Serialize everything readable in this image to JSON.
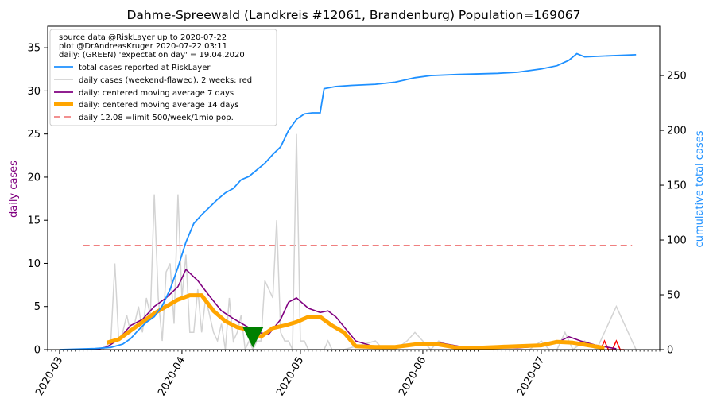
{
  "chart_data": {
    "type": "line",
    "title": "Dahme-Spreewald (Landkreis #12061, Brandenburg) Population=169067",
    "ylabel_left": "daily cases",
    "ylabel_right": "cumulative total cases",
    "ylim_left": [
      0,
      37.5
    ],
    "ylim_right": [
      0,
      295
    ],
    "xlim": [
      "2020-02-27",
      "2020-07-31"
    ],
    "left_ticks": [
      "0",
      "5",
      "10",
      "15",
      "20",
      "25",
      "30",
      "35"
    ],
    "right_ticks": [
      "0",
      "50",
      "100",
      "150",
      "200",
      "250"
    ],
    "date_ticks": [
      {
        "date": "2020-03-01",
        "label": "2020-03"
      },
      {
        "date": "2020-04-01",
        "label": "2020-04"
      },
      {
        "date": "2020-05-01",
        "label": "2020-05"
      },
      {
        "date": "2020-06-01",
        "label": "2020-06"
      },
      {
        "date": "2020-07-01",
        "label": "2020-07"
      }
    ],
    "legend": {
      "placement": "upper-left",
      "notes": [
        "source data @RiskLayer up to 2020-07-22",
        "plot @DrAndreasKruger 2020-07-22 03:11",
        "daily: (GREEN) 'expectation day' = 19.04.2020"
      ],
      "entries": [
        {
          "label": "total cases reported at RiskLayer",
          "color": "#1e90ff",
          "style": "line"
        },
        {
          "label": "daily cases (weekend-flawed), 2 weeks: red",
          "color": "#d3d3d3",
          "style": "line"
        },
        {
          "label": "daily: centered moving average 7 days",
          "color": "#800080",
          "style": "line"
        },
        {
          "label": "daily: centered moving average 14 days",
          "color": "#ffa500",
          "style": "thick"
        },
        {
          "label": "daily 12.08 =limit 500/week/1mio pop.",
          "color": "#f08080",
          "style": "dashed"
        }
      ]
    },
    "limit_line": {
      "value": 12.08,
      "from": "2020-03-07",
      "to": "2020-07-24"
    },
    "expectation_day": {
      "date": "2020-04-19",
      "value": 1.4,
      "color": "#008000"
    },
    "series_total": {
      "dates": [
        "2020-03-01",
        "2020-03-10",
        "2020-03-14",
        "2020-03-17",
        "2020-03-19",
        "2020-03-21",
        "2020-03-23",
        "2020-03-25",
        "2020-03-27",
        "2020-03-29",
        "2020-03-31",
        "2020-04-02",
        "2020-04-04",
        "2020-04-06",
        "2020-04-08",
        "2020-04-10",
        "2020-04-12",
        "2020-04-14",
        "2020-04-16",
        "2020-04-18",
        "2020-04-20",
        "2020-04-22",
        "2020-04-24",
        "2020-04-26",
        "2020-04-28",
        "2020-04-30",
        "2020-05-02",
        "2020-05-04",
        "2020-05-06",
        "2020-05-07",
        "2020-05-10",
        "2020-05-14",
        "2020-05-20",
        "2020-05-25",
        "2020-05-30",
        "2020-06-03",
        "2020-06-10",
        "2020-06-20",
        "2020-06-25",
        "2020-07-01",
        "2020-07-05",
        "2020-07-08",
        "2020-07-10",
        "2020-07-12",
        "2020-07-18",
        "2020-07-25"
      ],
      "values": [
        0,
        1,
        2,
        5,
        10,
        18,
        25,
        30,
        40,
        55,
        75,
        98,
        115,
        123,
        130,
        137,
        143,
        147,
        155,
        158,
        164,
        170,
        178,
        185,
        200,
        210,
        215,
        216,
        216,
        238,
        240,
        241,
        242,
        244,
        248,
        250,
        251,
        252,
        253,
        256,
        259,
        264,
        270,
        267,
        268,
        269
      ]
    },
    "series_daily": {
      "dates": [
        "2020-03-01",
        "2020-03-10",
        "2020-03-12",
        "2020-03-14",
        "2020-03-15",
        "2020-03-16",
        "2020-03-17",
        "2020-03-18",
        "2020-03-19",
        "2020-03-20",
        "2020-03-21",
        "2020-03-22",
        "2020-03-23",
        "2020-03-24",
        "2020-03-25",
        "2020-03-26",
        "2020-03-27",
        "2020-03-28",
        "2020-03-29",
        "2020-03-30",
        "2020-03-31",
        "2020-04-01",
        "2020-04-02",
        "2020-04-03",
        "2020-04-04",
        "2020-04-05",
        "2020-04-06",
        "2020-04-07",
        "2020-04-08",
        "2020-04-09",
        "2020-04-10",
        "2020-04-11",
        "2020-04-12",
        "2020-04-13",
        "2020-04-14",
        "2020-04-15",
        "2020-04-16",
        "2020-04-17",
        "2020-04-18",
        "2020-04-19",
        "2020-04-20",
        "2020-04-21",
        "2020-04-22",
        "2020-04-23",
        "2020-04-24",
        "2020-04-25",
        "2020-04-26",
        "2020-04-27",
        "2020-04-28",
        "2020-04-29",
        "2020-04-30",
        "2020-05-01",
        "2020-05-02",
        "2020-05-03",
        "2020-05-04",
        "2020-05-05",
        "2020-05-06",
        "2020-05-07",
        "2020-05-08",
        "2020-05-09",
        "2020-05-12",
        "2020-05-20",
        "2020-05-22",
        "2020-05-25",
        "2020-05-28",
        "2020-05-30",
        "2020-06-03",
        "2020-06-05",
        "2020-06-10",
        "2020-06-20",
        "2020-06-28",
        "2020-07-01",
        "2020-07-03",
        "2020-07-05",
        "2020-07-06",
        "2020-07-07",
        "2020-07-09",
        "2020-07-12",
        "2020-07-15",
        "2020-07-20",
        "2020-07-25"
      ],
      "values": [
        0,
        0,
        0,
        1,
        10,
        1,
        2,
        4,
        2,
        3,
        5,
        2,
        6,
        4,
        18,
        6,
        1,
        9,
        10,
        3,
        18,
        6,
        11,
        2,
        2,
        7,
        2,
        6,
        4,
        2,
        1,
        3,
        0,
        6,
        1,
        2,
        4,
        0,
        1,
        0,
        1,
        1,
        8,
        7,
        6,
        15,
        2,
        1,
        1,
        0,
        25,
        1,
        1,
        0,
        0,
        0,
        0,
        0,
        1,
        0,
        0,
        1,
        0,
        0,
        1,
        2,
        0,
        1,
        0,
        0,
        0,
        1,
        0,
        0,
        1,
        2,
        0,
        1,
        0,
        5,
        0
      ]
    },
    "daily_red_recent": {
      "dates": [
        "2020-07-16",
        "2020-07-17",
        "2020-07-18",
        "2020-07-19",
        "2020-07-20",
        "2020-07-21",
        "2020-07-22"
      ],
      "values": [
        0,
        1,
        0,
        0,
        1,
        0,
        0
      ]
    },
    "series_ma7": {
      "dates": [
        "2020-03-10",
        "2020-03-13",
        "2020-03-16",
        "2020-03-19",
        "2020-03-22",
        "2020-03-25",
        "2020-03-28",
        "2020-03-31",
        "2020-04-02",
        "2020-04-05",
        "2020-04-08",
        "2020-04-11",
        "2020-04-14",
        "2020-04-17",
        "2020-04-20",
        "2020-04-23",
        "2020-04-26",
        "2020-04-28",
        "2020-04-30",
        "2020-05-03",
        "2020-05-06",
        "2020-05-08",
        "2020-05-10",
        "2020-05-15",
        "2020-05-20",
        "2020-05-25",
        "2020-05-30",
        "2020-06-05",
        "2020-06-10",
        "2020-06-20",
        "2020-06-25",
        "2020-07-01",
        "2020-07-05",
        "2020-07-08",
        "2020-07-11",
        "2020-07-15",
        "2020-07-20"
      ],
      "values": [
        0,
        0.3,
        1.2,
        2.8,
        3.5,
        5.0,
        6.0,
        7.3,
        9.3,
        8.0,
        6.2,
        4.5,
        3.6,
        2.8,
        2.0,
        1.8,
        3.5,
        5.5,
        6.0,
        4.8,
        4.3,
        4.5,
        3.8,
        1.0,
        0.3,
        0.2,
        0.7,
        0.8,
        0.4,
        0.2,
        0.2,
        0.4,
        0.8,
        1.5,
        1.0,
        0.5,
        0.1
      ]
    },
    "series_ma14": {
      "dates": [
        "2020-03-13",
        "2020-03-16",
        "2020-03-19",
        "2020-03-22",
        "2020-03-25",
        "2020-03-28",
        "2020-03-31",
        "2020-04-03",
        "2020-04-06",
        "2020-04-09",
        "2020-04-12",
        "2020-04-15",
        "2020-04-18",
        "2020-04-21",
        "2020-04-24",
        "2020-04-27",
        "2020-04-30",
        "2020-05-03",
        "2020-05-06",
        "2020-05-09",
        "2020-05-12",
        "2020-05-15",
        "2020-05-20",
        "2020-05-25",
        "2020-05-30",
        "2020-06-05",
        "2020-06-10",
        "2020-06-15",
        "2020-06-20",
        "2020-06-25",
        "2020-07-01",
        "2020-07-05",
        "2020-07-09",
        "2020-07-13",
        "2020-07-17"
      ],
      "values": [
        0.8,
        1.2,
        2.2,
        3.2,
        4.2,
        5.0,
        5.8,
        6.3,
        6.3,
        4.5,
        3.3,
        2.6,
        2.3,
        1.5,
        2.5,
        2.8,
        3.2,
        3.8,
        3.8,
        2.8,
        2.0,
        0.4,
        0.3,
        0.3,
        0.6,
        0.6,
        0.2,
        0.2,
        0.3,
        0.4,
        0.5,
        0.9,
        0.8,
        0.5,
        0.2
      ]
    }
  }
}
